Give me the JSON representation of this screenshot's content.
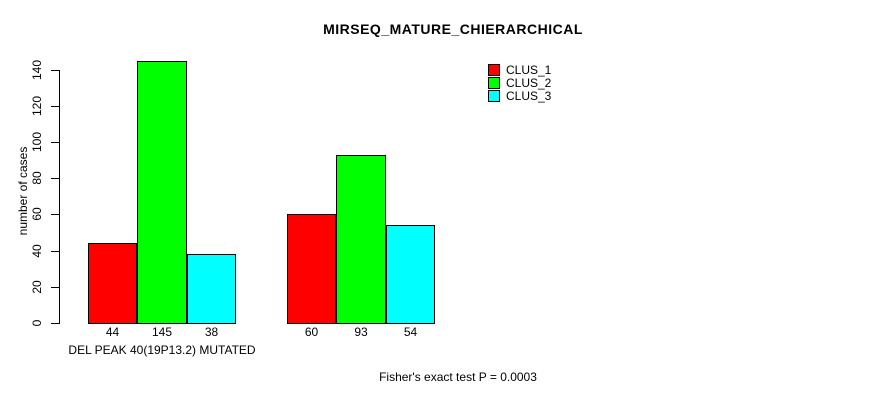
{
  "chart_data": {
    "type": "bar",
    "title": "MIRSEQ_MATURE_CHIERARCHICAL",
    "ylabel": "number of cases",
    "xlabel": "",
    "ylim": [
      0,
      140
    ],
    "yticks": [
      0,
      20,
      40,
      60,
      80,
      100,
      120,
      140
    ],
    "categories": [
      "DEL PEAK 40(19P13.2) MUTATED",
      ""
    ],
    "series": [
      {
        "name": "CLUS_1",
        "color": "#ff0000",
        "values": [
          44,
          60
        ]
      },
      {
        "name": "CLUS_2",
        "color": "#00ff00",
        "values": [
          145,
          93
        ]
      },
      {
        "name": "CLUS_3",
        "color": "#00ffff",
        "values": [
          38,
          54
        ]
      }
    ],
    "legend_position": "top-right",
    "grid": false,
    "bar_value_labels_shown": true,
    "annotation": "Fisher's exact test P = 0.0003",
    "colors": {
      "background": "#ffffff",
      "text": "#000000",
      "axis": "#000000",
      "bar_border": "#000000"
    }
  }
}
